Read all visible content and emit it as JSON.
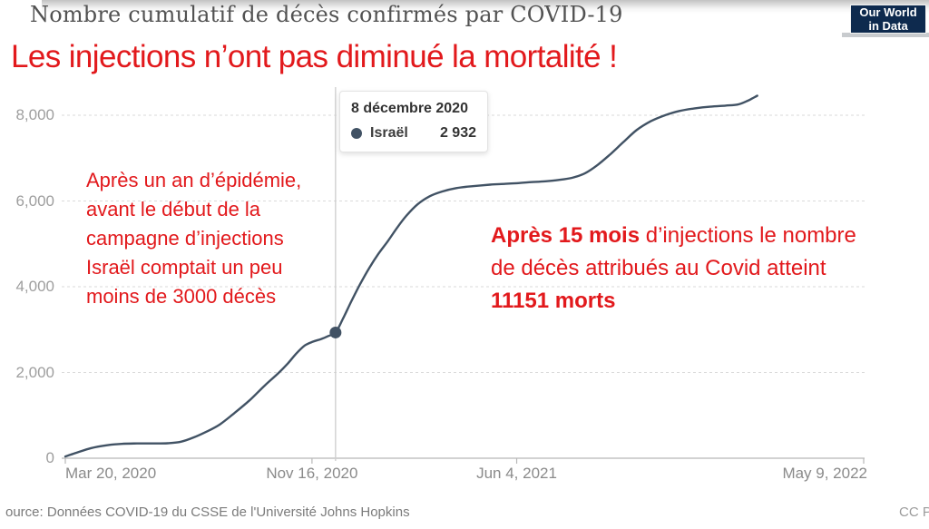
{
  "header": {
    "title": "Nombre cumulatif de décès confirmés par COVID-19",
    "logo": {
      "line1": "Our World",
      "line2": "in Data"
    }
  },
  "overlay": {
    "headline": "Les injections n’ont pas diminué la mortalité !",
    "red_color": "#e2191c",
    "note_left": "Après un an d’épidémie,\navant le début de la\ncampagne d’injections\nIsraël comptait un peu\nmoins de 3000 décès",
    "note_right_lines": [
      [
        {
          "text": "Après 15 mois",
          "bold": true
        },
        {
          "text": " d’injections le nombre",
          "bold": false
        }
      ],
      [
        {
          "text": "de décès attribués au Covid atteint",
          "bold": false
        }
      ],
      [
        {
          "text": "11151 morts",
          "bold": true
        }
      ]
    ]
  },
  "tooltip": {
    "date": "8 décembre 2020",
    "series": {
      "label": "Israël",
      "value": "2 932"
    }
  },
  "footer": {
    "source": "ource: Données COVID-19 du CSSE de l'Université Johns Hopkins",
    "license": "CC PA"
  },
  "chart_data": {
    "type": "line",
    "title": "Nombre cumulatif de décès confirmés par COVID-19",
    "series_name": "Israël",
    "line_color": "#415264",
    "grid": "dashed-horizontal",
    "legend_position": "none",
    "ylim": [
      0,
      8000
    ],
    "x_domain_note": "days since Mar 20, 2020; axis ends May 9, 2022 (day 780)",
    "x_ticks": [
      {
        "label": "Mar 20, 2020",
        "day": 0,
        "align": "left"
      },
      {
        "label": "Nov 16, 2020",
        "day": 241,
        "align": "center"
      },
      {
        "label": "Jun 4, 2021",
        "day": 441,
        "align": "center"
      },
      {
        "label": "May 9, 2022",
        "day": 780,
        "align": "right"
      }
    ],
    "y_ticks": [
      {
        "label": "0",
        "value": 0
      },
      {
        "label": "2,000",
        "value": 2000
      },
      {
        "label": "4,000",
        "value": 4000
      },
      {
        "label": "6,000",
        "value": 6000
      },
      {
        "label": "8,000",
        "value": 8000
      }
    ],
    "marker": {
      "day": 264,
      "value": 2932,
      "date": "8 décembre 2020"
    },
    "hover_line_day": 264,
    "points": [
      [
        0,
        40
      ],
      [
        10,
        120
      ],
      [
        25,
        235
      ],
      [
        40,
        300
      ],
      [
        55,
        335
      ],
      [
        70,
        345
      ],
      [
        85,
        345
      ],
      [
        100,
        350
      ],
      [
        113,
        385
      ],
      [
        125,
        480
      ],
      [
        138,
        620
      ],
      [
        151,
        790
      ],
      [
        165,
        1050
      ],
      [
        180,
        1350
      ],
      [
        195,
        1700
      ],
      [
        208,
        1980
      ],
      [
        217,
        2200
      ],
      [
        226,
        2450
      ],
      [
        234,
        2630
      ],
      [
        242,
        2720
      ],
      [
        250,
        2780
      ],
      [
        257,
        2850
      ],
      [
        264,
        2932
      ],
      [
        271,
        3240
      ],
      [
        279,
        3640
      ],
      [
        288,
        4060
      ],
      [
        297,
        4440
      ],
      [
        306,
        4770
      ],
      [
        315,
        5060
      ],
      [
        324,
        5370
      ],
      [
        333,
        5650
      ],
      [
        344,
        5920
      ],
      [
        356,
        6110
      ],
      [
        368,
        6220
      ],
      [
        382,
        6300
      ],
      [
        398,
        6345
      ],
      [
        415,
        6380
      ],
      [
        430,
        6400
      ],
      [
        441,
        6415
      ],
      [
        455,
        6440
      ],
      [
        469,
        6460
      ],
      [
        482,
        6490
      ],
      [
        495,
        6540
      ],
      [
        508,
        6650
      ],
      [
        520,
        6840
      ],
      [
        532,
        7080
      ],
      [
        545,
        7370
      ],
      [
        558,
        7650
      ],
      [
        572,
        7860
      ],
      [
        586,
        8000
      ],
      [
        600,
        8100
      ],
      [
        615,
        8160
      ],
      [
        630,
        8200
      ],
      [
        645,
        8225
      ],
      [
        657,
        8250
      ],
      [
        666,
        8330
      ],
      [
        671,
        8390
      ],
      [
        676,
        8455
      ]
    ]
  }
}
